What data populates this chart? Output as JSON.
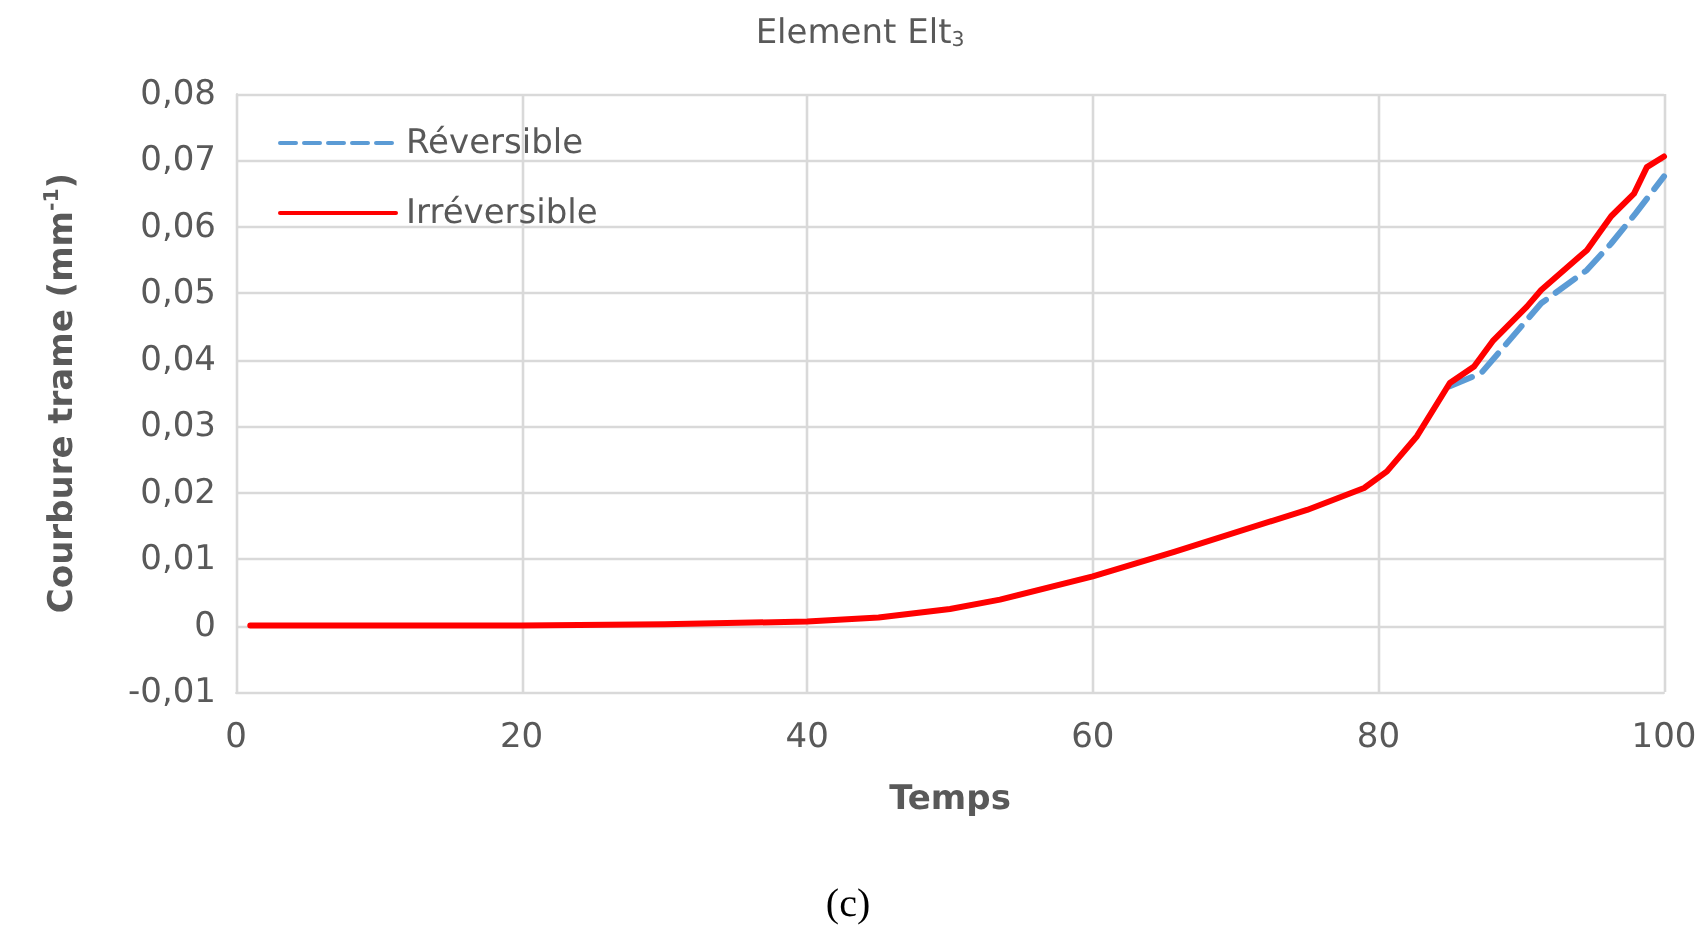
{
  "chart_data": {
    "type": "line",
    "title": "Element Elt$_{3}$",
    "xlabel": "Temps",
    "ylabel": "Courbure trame (mm$^{-1}$)",
    "annotations": [
      "(c)"
    ],
    "xlim": [
      0,
      100
    ],
    "xticks": [
      0,
      20,
      40,
      60,
      80,
      100
    ],
    "ylim": [
      -0.01,
      0.08
    ],
    "yticks": [
      {
        "value": -0.01,
        "label": "-0,01"
      },
      {
        "value": 0,
        "label": "0"
      },
      {
        "value": 0.01,
        "label": "0,01"
      },
      {
        "value": 0.02,
        "label": "0,02"
      },
      {
        "value": 0.03,
        "label": "0,03"
      },
      {
        "value": 0.04,
        "label": "0,04"
      },
      {
        "value": 0.05,
        "label": "0,05"
      },
      {
        "value": 0.06,
        "label": "0,06"
      },
      {
        "value": 0.07,
        "label": "0,07"
      },
      {
        "value": 0.08,
        "label": "0,08"
      }
    ],
    "grid": true,
    "legend": "top left",
    "marker": "none",
    "series": [
      {
        "name": "Réversible",
        "color": "#5b9bd5",
        "line_style": "dashed",
        "x": [
          85,
          87.2,
          91.4,
          94.6,
          96.3,
          98,
          100
        ],
        "values": [
          0.036,
          0.038,
          0.0485,
          0.0535,
          0.0575,
          0.062,
          0.0676
        ]
      },
      {
        "name": "Irréversible",
        "color": "#ff0000",
        "line_style": "solid",
        "x": [
          1,
          20,
          30,
          40,
          45,
          50,
          53.5,
          60,
          65.7,
          75,
          79,
          80.6,
          82.7,
          85,
          86.7,
          88,
          90.4,
          91.4,
          94.6,
          96.3,
          97.9,
          98.8,
          100
        ],
        "values": [
          0,
          0,
          0.0002,
          0.0006,
          0.0012,
          0.0025,
          0.0039,
          0.0074,
          0.0111,
          0.0174,
          0.0207,
          0.0232,
          0.0285,
          0.0365,
          0.039,
          0.0428,
          0.048,
          0.0505,
          0.0565,
          0.0616,
          0.065,
          0.069,
          0.0706
        ]
      }
    ]
  }
}
